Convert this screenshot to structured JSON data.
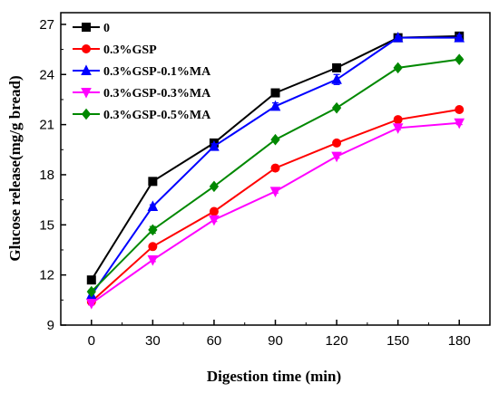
{
  "chart_data": {
    "type": "line",
    "xlabel": "Digestion time (min)",
    "ylabel": "Glucose release(mg/g bread)",
    "x": [
      0,
      30,
      60,
      90,
      120,
      150,
      180
    ],
    "xticks": [
      "0",
      "30",
      "60",
      "90",
      "120",
      "150",
      "180"
    ],
    "xlim": [
      -15,
      195
    ],
    "yticks": [
      "9",
      "12",
      "15",
      "18",
      "21",
      "24",
      "27"
    ],
    "ylim": [
      9,
      27.7
    ],
    "grid": false,
    "legend_position": "top-left",
    "series": [
      {
        "name": "0",
        "color": "#000000",
        "marker": "square",
        "values": [
          11.7,
          17.6,
          19.9,
          22.9,
          24.4,
          26.2,
          26.3
        ],
        "errors": [
          0.1,
          0.15,
          0.1,
          0.1,
          0.2,
          0.1,
          0.1
        ]
      },
      {
        "name": "0.3%GSP",
        "color": "#ff0000",
        "marker": "circle",
        "values": [
          10.4,
          13.7,
          15.8,
          18.4,
          19.9,
          21.3,
          21.9
        ],
        "errors": [
          0.1,
          0.1,
          0.1,
          0.1,
          0.1,
          0.1,
          0.1
        ]
      },
      {
        "name": "0.3%GSP-0.1%MA",
        "color": "#0000ff",
        "marker": "triangle-up",
        "values": [
          10.8,
          16.1,
          19.7,
          22.1,
          23.7,
          26.2,
          26.2
        ],
        "errors": [
          0.1,
          0.1,
          0.15,
          0.2,
          0.3,
          0.1,
          0.15
        ]
      },
      {
        "name": "0.3%GSP-0.3%MA",
        "color": "#ff00ff",
        "marker": "triangle-down",
        "values": [
          10.3,
          12.9,
          15.3,
          17.0,
          19.1,
          20.8,
          21.1
        ],
        "errors": [
          0.1,
          0.1,
          0.1,
          0.1,
          0.1,
          0.1,
          0.1
        ]
      },
      {
        "name": "0.3%GSP-0.5%MA",
        "color": "#008800",
        "marker": "diamond",
        "values": [
          11.0,
          14.7,
          17.3,
          20.1,
          22.0,
          24.4,
          24.9
        ],
        "errors": [
          0.1,
          0.2,
          0.1,
          0.1,
          0.1,
          0.1,
          0.1
        ]
      }
    ]
  }
}
